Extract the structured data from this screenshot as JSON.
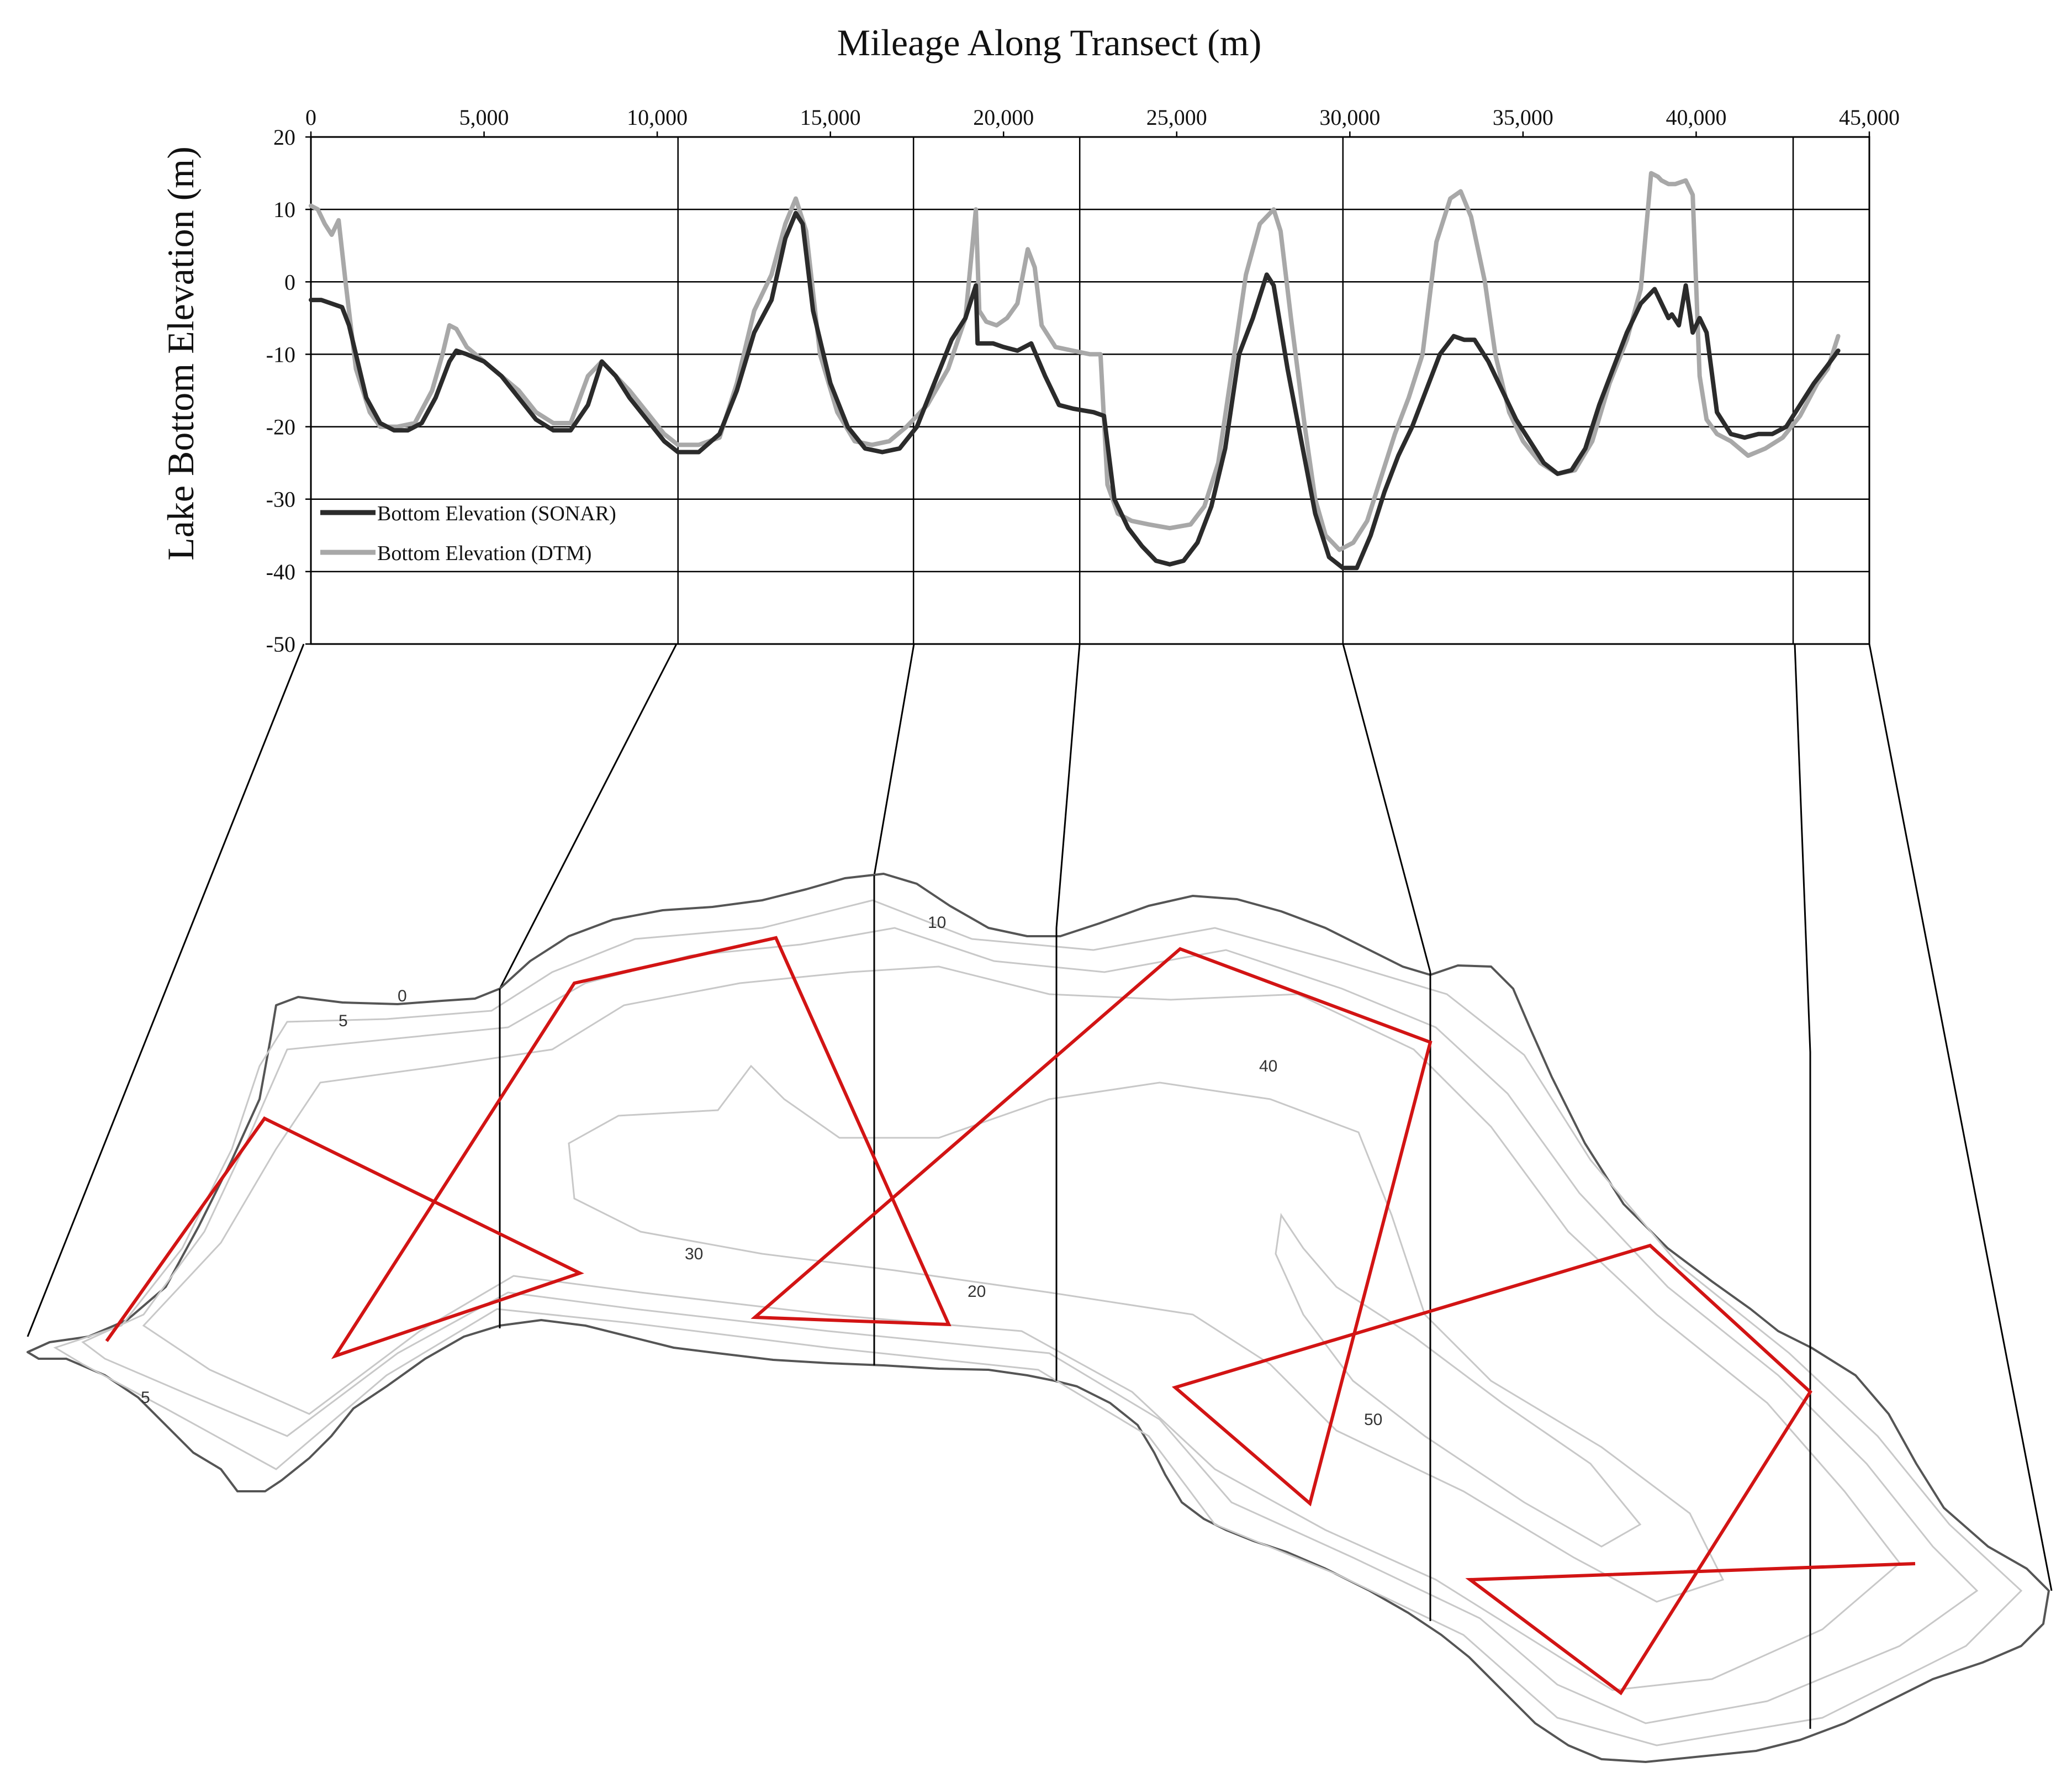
{
  "chart_data": {
    "type": "line",
    "title": "",
    "xlabel": "Mileage Along Transect (m)",
    "ylabel": "Lake Bottom Elevation (m)",
    "xlim": [
      0,
      45000
    ],
    "ylim": [
      -50,
      20
    ],
    "x_ticks": [
      0,
      5000,
      10000,
      15000,
      20000,
      25000,
      30000,
      35000,
      40000,
      45000
    ],
    "x_tick_labels": [
      "0",
      "5,000",
      "10,000",
      "15,000",
      "20,000",
      "25,000",
      "30,000",
      "35,000",
      "40,000",
      "45,000"
    ],
    "y_ticks": [
      20,
      10,
      0,
      -10,
      -20,
      -30,
      -40,
      -50
    ],
    "y_tick_labels": [
      "20",
      "10",
      "0",
      "-10",
      "-20",
      "-30",
      "-40",
      "-50"
    ],
    "x_axis_position": "top",
    "grid": "horizontal",
    "legend_position": "bottom-left",
    "section_dividers": [
      10600,
      17400,
      22200,
      29800,
      42800
    ],
    "series": [
      {
        "name": "Bottom Elevation (SONAR)",
        "color": "#2b2b2b",
        "x": [
          0,
          300,
          600,
          900,
          1100,
          1300,
          1600,
          2000,
          2400,
          2800,
          3200,
          3600,
          4000,
          4200,
          4500,
          5000,
          5500,
          6000,
          6500,
          7000,
          7500,
          8000,
          8400,
          8800,
          9200,
          9700,
          10200,
          10600,
          11200,
          11800,
          12300,
          12800,
          13300,
          13700,
          14000,
          14200,
          14500,
          15000,
          15500,
          16000,
          16500,
          17000,
          17500,
          18000,
          18500,
          18900,
          19200,
          19250,
          19700,
          20000,
          20400,
          20800,
          21200,
          21600,
          22000,
          22600,
          22900,
          23200,
          23600,
          24000,
          24400,
          24800,
          25200,
          25600,
          26000,
          26400,
          26800,
          27200,
          27600,
          27800,
          28200,
          28600,
          29000,
          29400,
          29800,
          30200,
          30600,
          31000,
          31400,
          31800,
          32200,
          32600,
          33000,
          33300,
          33600,
          34000,
          34400,
          34800,
          35200,
          35600,
          36000,
          36400,
          36800,
          37200,
          37600,
          38000,
          38400,
          38800,
          39200,
          39300,
          39500,
          39700,
          39900,
          40100,
          40300,
          40600,
          41000,
          41400,
          41800,
          42200,
          42600,
          43000,
          43400,
          43800,
          44100
        ],
        "y": [
          -2.5,
          -2.5,
          -3,
          -3.5,
          -6,
          -10,
          -16,
          -19.5,
          -20.5,
          -20.5,
          -19.5,
          -16,
          -11,
          -9.5,
          -10,
          -11,
          -13,
          -16,
          -19,
          -20.5,
          -20.5,
          -17,
          -11,
          -13,
          -16,
          -19,
          -22,
          -23.5,
          -23.5,
          -21,
          -15,
          -7,
          -2.5,
          6,
          9.5,
          8,
          -4,
          -14,
          -20,
          -23,
          -23.5,
          -23,
          -20,
          -14,
          -8,
          -5,
          -0.5,
          -8.5,
          -8.5,
          -9,
          -9.5,
          -8.5,
          -13,
          -17,
          -17.5,
          -18,
          -18.5,
          -30,
          -34,
          -36.5,
          -38.5,
          -39,
          -38.5,
          -36,
          -31,
          -23,
          -10,
          -5,
          1,
          -0.5,
          -12,
          -22,
          -32,
          -38,
          -39.5,
          -39.5,
          -35,
          -29,
          -24,
          -20,
          -15,
          -10,
          -7.5,
          -8,
          -8,
          -11,
          -15,
          -19,
          -22,
          -25,
          -26.5,
          -26,
          -23,
          -17,
          -12,
          -7,
          -3,
          -1,
          -5,
          -4.5,
          -6,
          -0.5,
          -7,
          -5,
          -7,
          -18,
          -21,
          -21.5,
          -21,
          -21,
          -20,
          -17,
          -14,
          -11.5,
          -9.5
        ]
      },
      {
        "name": "Bottom Elevation (DTM)",
        "color": "#a8a8a8",
        "x": [
          0,
          200,
          400,
          600,
          800,
          1000,
          1300,
          1700,
          2000,
          2500,
          3000,
          3500,
          3800,
          4000,
          4200,
          4500,
          5000,
          5500,
          6000,
          6500,
          7000,
          7500,
          8000,
          8400,
          8800,
          9200,
          9700,
          10200,
          10600,
          11200,
          11800,
          12300,
          12800,
          13300,
          13700,
          14000,
          14300,
          14700,
          15200,
          15700,
          16200,
          16700,
          17200,
          17800,
          18400,
          18900,
          19200,
          19300,
          19500,
          19800,
          20100,
          20400,
          20700,
          20900,
          21100,
          21500,
          22000,
          22500,
          22800,
          23000,
          23300,
          23700,
          24200,
          24800,
          25400,
          25800,
          26200,
          26600,
          27000,
          27400,
          27800,
          28000,
          28300,
          28700,
          29000,
          29300,
          29700,
          30100,
          30500,
          30900,
          31300,
          31700,
          32100,
          32500,
          32900,
          33200,
          33500,
          33900,
          34200,
          34600,
          35000,
          35500,
          36000,
          36500,
          37000,
          37500,
          38000,
          38400,
          38700,
          38900,
          39000,
          39200,
          39400,
          39700,
          39900,
          40100,
          40300,
          40600,
          41000,
          41500,
          42000,
          42500,
          43000,
          43500,
          43800,
          44100
        ],
        "y": [
          10.5,
          10,
          8,
          6.5,
          8.5,
          0,
          -12,
          -18,
          -20,
          -20,
          -19.5,
          -15,
          -10,
          -6,
          -6.5,
          -9,
          -11,
          -13,
          -15,
          -18,
          -19.5,
          -19.5,
          -13,
          -11,
          -13,
          -15,
          -18,
          -21,
          -22.5,
          -22.5,
          -21.5,
          -14,
          -4,
          1,
          8,
          11.5,
          7,
          -10,
          -18,
          -22,
          -22.5,
          -22,
          -20,
          -17,
          -12,
          -5,
          10,
          -4,
          -5.5,
          -6,
          -5,
          -3,
          4.5,
          2,
          -6,
          -9,
          -9.5,
          -10,
          -10,
          -28,
          -32,
          -33,
          -33.5,
          -34,
          -33.5,
          -31,
          -25,
          -12,
          1,
          8,
          10,
          7,
          -5,
          -20,
          -30,
          -35,
          -37,
          -36,
          -33,
          -27,
          -21,
          -16,
          -10,
          5.5,
          11.5,
          12.5,
          9,
          0,
          -10,
          -18,
          -22,
          -25,
          -26.5,
          -26,
          -22,
          -14,
          -8,
          -1,
          15,
          14.5,
          14,
          13.5,
          13.5,
          14,
          12,
          -13,
          -19,
          -21,
          -22,
          -24,
          -23,
          -21.5,
          -18.5,
          -14,
          -12,
          -7.5
        ]
      }
    ]
  },
  "map": {
    "contour_labels": [
      "0",
      "5",
      "10",
      "30",
      "20",
      "40",
      "50",
      "5"
    ]
  }
}
